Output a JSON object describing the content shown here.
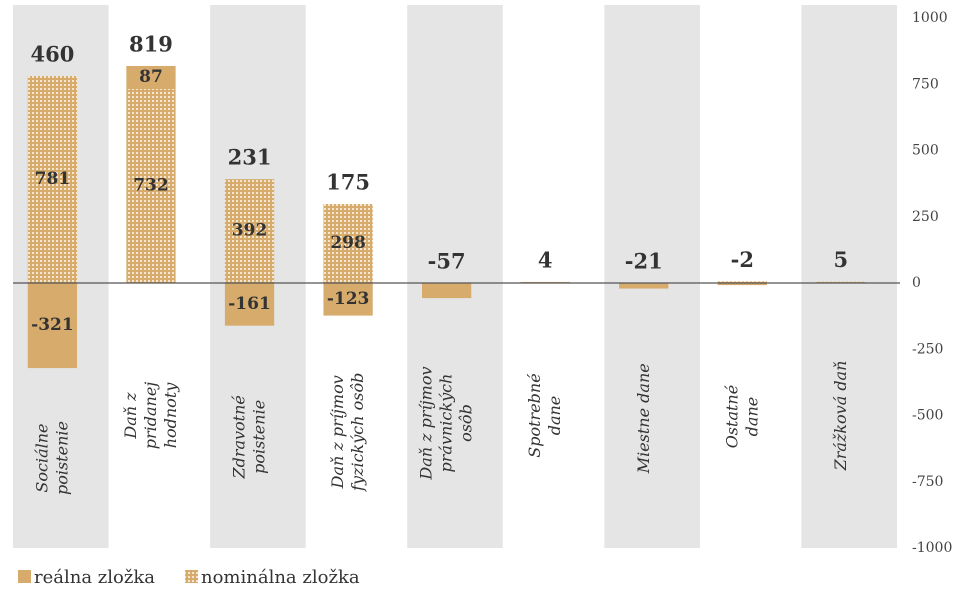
{
  "chart_data": {
    "type": "stacked_bar",
    "categories": [
      "Sociálne\npoistenie",
      "Daň z\npridanej\nhodnoty",
      "Zdravotné\npoistenie",
      "Daň z príjmov\nfyzických osôb",
      "Daň z príjmov\nprávnických\nosôb",
      "Spotrebné\ndane",
      "Miestne dane",
      "Ostatné\ndane",
      "Zrážková daň"
    ],
    "series": [
      {
        "name": "reálna zložka",
        "color": "#d6ab6c",
        "pattern": false,
        "values": [
          -321,
          87,
          -161,
          -123,
          -57,
          4,
          -21,
          -8,
          0
        ]
      },
      {
        "name": "nominálna zložka",
        "color": "#d6ab6c",
        "pattern": true,
        "values": [
          781,
          732,
          392,
          298,
          0,
          0,
          0,
          6,
          5
        ]
      }
    ],
    "totals": [
      460,
      819,
      231,
      175,
      -57,
      4,
      -21,
      -2,
      5
    ],
    "ylim": [
      -1000,
      1000
    ],
    "yticks": [
      -1000,
      -750,
      -500,
      -250,
      0,
      250,
      500,
      750,
      1000
    ]
  }
}
